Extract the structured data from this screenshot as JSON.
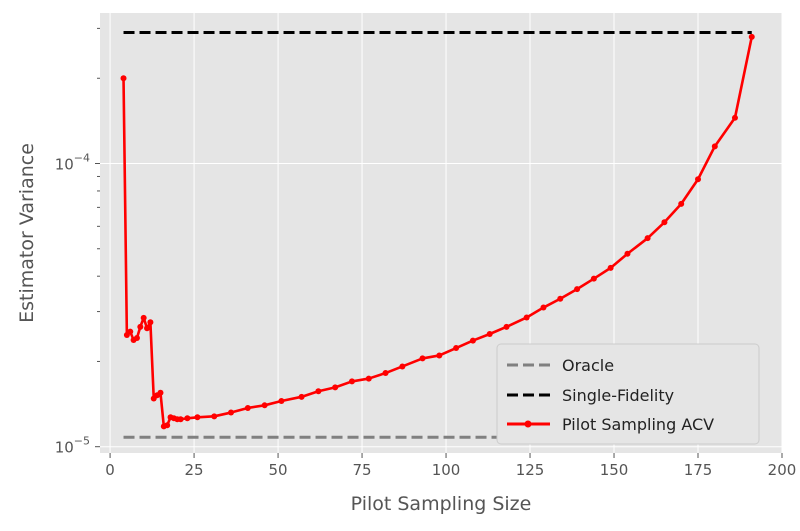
{
  "chart_data": {
    "type": "line",
    "title": "",
    "xlabel": "Pilot Sampling Size",
    "ylabel": "Estimator Variance",
    "xlim": [
      -3,
      200
    ],
    "ylim": [
      9.5e-06,
      0.00034
    ],
    "yscale": "log",
    "grid": true,
    "legend_position": "bottom-right",
    "x_ticks": [
      0,
      25,
      50,
      75,
      100,
      125,
      150,
      175,
      200
    ],
    "y_ticks": [
      {
        "value": 1e-05,
        "base": "10",
        "exp": "−5"
      },
      {
        "value": 0.0001,
        "base": "10",
        "exp": "−4"
      }
    ],
    "series": [
      {
        "name": "Oracle",
        "color": "#808080",
        "style": "dashed",
        "x": [
          4,
          191
        ],
        "y": [
          1.08e-05,
          1.08e-05
        ]
      },
      {
        "name": "Single-Fidelity",
        "color": "#000000",
        "style": "dashed",
        "x": [
          4,
          191
        ],
        "y": [
          0.00029,
          0.00029
        ]
      },
      {
        "name": "Pilot Sampling ACV",
        "color": "#ff0000",
        "style": "solid-markers",
        "x": [
          4,
          5,
          6,
          7,
          8,
          9,
          10,
          11,
          12,
          13,
          14,
          15,
          16,
          17,
          18,
          19,
          20,
          21,
          23,
          26,
          31,
          36,
          41,
          46,
          51,
          57,
          62,
          67,
          72,
          77,
          82,
          87,
          93,
          98,
          103,
          108,
          113,
          118,
          124,
          129,
          134,
          139,
          144,
          149,
          154,
          160,
          165,
          170,
          175,
          180,
          186,
          191
        ],
        "y": [
          0.0002,
          2.48e-05,
          2.55e-05,
          2.38e-05,
          2.42e-05,
          2.65e-05,
          2.85e-05,
          2.62e-05,
          2.75e-05,
          1.48e-05,
          1.52e-05,
          1.55e-05,
          1.18e-05,
          1.19e-05,
          1.27e-05,
          1.26e-05,
          1.25e-05,
          1.25e-05,
          1.26e-05,
          1.27e-05,
          1.28e-05,
          1.32e-05,
          1.37e-05,
          1.4e-05,
          1.45e-05,
          1.5e-05,
          1.57e-05,
          1.62e-05,
          1.7e-05,
          1.74e-05,
          1.82e-05,
          1.92e-05,
          2.05e-05,
          2.1e-05,
          2.23e-05,
          2.37e-05,
          2.5e-05,
          2.65e-05,
          2.86e-05,
          3.1e-05,
          3.33e-05,
          3.6e-05,
          3.92e-05,
          4.28e-05,
          4.8e-05,
          5.45e-05,
          6.2e-05,
          7.2e-05,
          8.8e-05,
          0.000115,
          0.000145,
          0.00028
        ]
      }
    ]
  }
}
